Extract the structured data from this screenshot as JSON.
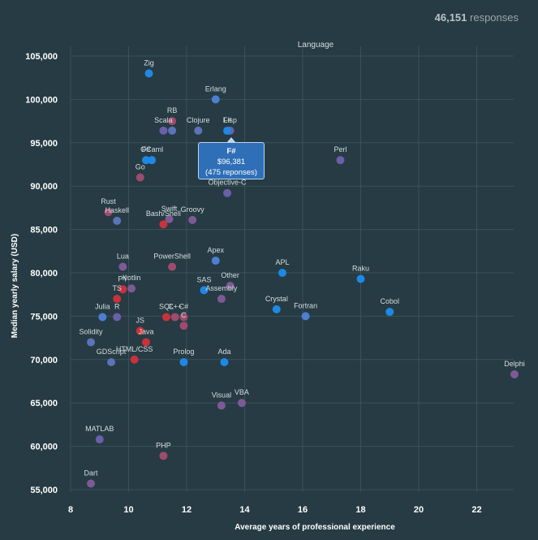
{
  "header": {
    "responses_count": "46,151",
    "responses_label": "responses"
  },
  "tooltip": {
    "language": "F#",
    "salary": "$96,381",
    "responses": "(475 reponses)"
  },
  "colors": {
    "background": "#263b43",
    "blue": "#1e88e5",
    "steel": "#5b73b8",
    "purple": "#7d5a96",
    "rose": "#9e4b6e",
    "red": "#c8323c"
  },
  "chart_data": {
    "type": "scatter",
    "title": "",
    "legend_title": "Language",
    "xlabel": "Average years of professional experience",
    "ylabel": "Median yearly salary (USD)",
    "xlim": [
      8,
      23.3
    ],
    "ylim": [
      55000,
      106000
    ],
    "x_ticks": [
      8,
      10,
      12,
      14,
      16,
      18,
      20,
      22
    ],
    "y_ticks": [
      55000,
      60000,
      65000,
      70000,
      75000,
      80000,
      85000,
      90000,
      95000,
      100000,
      105000
    ],
    "x_tick_labels": [
      "8",
      "10",
      "12",
      "14",
      "16",
      "18",
      "20",
      "22"
    ],
    "y_tick_labels": [
      "55,000",
      "60,000",
      "65,000",
      "70,000",
      "75,000",
      "80,000",
      "85,000",
      "90,000",
      "95,000",
      "100,000",
      "105,000"
    ],
    "grid": true,
    "points": [
      {
        "label": "Zig",
        "x": 10.7,
        "y": 103000,
        "color": "#1e88e5"
      },
      {
        "label": "Erlang",
        "x": 13.0,
        "y": 100000,
        "color": "#4c7fd0"
      },
      {
        "label": "RB",
        "x": 11.5,
        "y": 97500,
        "color": "#9e4b6e"
      },
      {
        "label": "Scala",
        "x": 11.2,
        "y": 96400,
        "color": "#6a5fa8"
      },
      {
        "label": "",
        "x": 11.5,
        "y": 96400,
        "color": "#5b73b8"
      },
      {
        "label": "Clojure",
        "x": 12.4,
        "y": 96400,
        "color": "#5b73b8"
      },
      {
        "label": "Lisp",
        "x": 13.5,
        "y": 96400,
        "color": "#6a5fa8"
      },
      {
        "label": "F#",
        "x": 13.4,
        "y": 96381,
        "color": "#1e88e5"
      },
      {
        "label": "F#",
        "x": 10.6,
        "y": 93000,
        "color": "#1e88e5"
      },
      {
        "label": "OCaml",
        "x": 10.8,
        "y": 93000,
        "color": "#1e88e5"
      },
      {
        "label": "Perl",
        "x": 17.3,
        "y": 93000,
        "color": "#6a5fa8"
      },
      {
        "label": "Go",
        "x": 10.4,
        "y": 91000,
        "color": "#9e4b6e"
      },
      {
        "label": "Objective-C",
        "x": 13.4,
        "y": 89200,
        "color": "#6a5fa8"
      },
      {
        "label": "Rust",
        "x": 9.3,
        "y": 87000,
        "color": "#9e4b6e"
      },
      {
        "label": "Haskell",
        "x": 9.6,
        "y": 86000,
        "color": "#5b73b8"
      },
      {
        "label": "Swift",
        "x": 11.4,
        "y": 86200,
        "color": "#7d5a96"
      },
      {
        "label": "Bash/Shell",
        "x": 11.2,
        "y": 85600,
        "color": "#c8323c"
      },
      {
        "label": "Groovy",
        "x": 12.2,
        "y": 86100,
        "color": "#7d5a96"
      },
      {
        "label": "Apex",
        "x": 13.0,
        "y": 81400,
        "color": "#4c7fd0"
      },
      {
        "label": "APL",
        "x": 15.3,
        "y": 80000,
        "color": "#1e88e5"
      },
      {
        "label": "Raku",
        "x": 18.0,
        "y": 79300,
        "color": "#1e88e5"
      },
      {
        "label": "Lua",
        "x": 9.8,
        "y": 80700,
        "color": "#7d5a96"
      },
      {
        "label": "PowerShell",
        "x": 11.5,
        "y": 80700,
        "color": "#9e4b6e"
      },
      {
        "label": "PY",
        "x": 9.8,
        "y": 78100,
        "color": "#c8323c"
      },
      {
        "label": "Kotlin",
        "x": 10.1,
        "y": 78200,
        "color": "#7d5a96"
      },
      {
        "label": "SAS",
        "x": 12.6,
        "y": 78000,
        "color": "#1e88e5"
      },
      {
        "label": "Other",
        "x": 13.5,
        "y": 78500,
        "color": "#7d5a96"
      },
      {
        "label": "Assembly",
        "x": 13.2,
        "y": 77000,
        "color": "#7d5a96"
      },
      {
        "label": "TS",
        "x": 9.6,
        "y": 77000,
        "color": "#c8323c"
      },
      {
        "label": "Crystal",
        "x": 15.1,
        "y": 75800,
        "color": "#1e88e5"
      },
      {
        "label": "Cobol",
        "x": 19.0,
        "y": 75500,
        "color": "#1e88e5"
      },
      {
        "label": "Julia",
        "x": 9.1,
        "y": 74900,
        "color": "#4c7fd0"
      },
      {
        "label": "R",
        "x": 9.6,
        "y": 74900,
        "color": "#6a5fa8"
      },
      {
        "label": "SQL",
        "x": 11.3,
        "y": 74900,
        "color": "#c8323c"
      },
      {
        "label": "C++",
        "x": 11.6,
        "y": 74900,
        "color": "#9e4b6e"
      },
      {
        "label": "C#",
        "x": 11.9,
        "y": 74900,
        "color": "#9e4b6e"
      },
      {
        "label": "C",
        "x": 11.9,
        "y": 73900,
        "color": "#9e4b6e"
      },
      {
        "label": "Fortran",
        "x": 16.1,
        "y": 75000,
        "color": "#4c7fd0"
      },
      {
        "label": "JS",
        "x": 10.4,
        "y": 73300,
        "color": "#c8323c"
      },
      {
        "label": "Solidity",
        "x": 8.7,
        "y": 72000,
        "color": "#5b73b8"
      },
      {
        "label": "Java",
        "x": 10.6,
        "y": 72000,
        "color": "#c8323c"
      },
      {
        "label": "GDScript",
        "x": 9.4,
        "y": 69700,
        "color": "#5b73b8"
      },
      {
        "label": "HTML/CSS",
        "x": 10.2,
        "y": 70000,
        "color": "#c8323c"
      },
      {
        "label": "Prolog",
        "x": 11.9,
        "y": 69700,
        "color": "#1e88e5"
      },
      {
        "label": "Ada",
        "x": 13.3,
        "y": 69700,
        "color": "#1e88e5"
      },
      {
        "label": "Delphi",
        "x": 23.3,
        "y": 68300,
        "color": "#7d5a96"
      },
      {
        "label": "Visual",
        "x": 13.2,
        "y": 64700,
        "color": "#7d5a96"
      },
      {
        "label": "VBA",
        "x": 13.9,
        "y": 65000,
        "color": "#7d5a96"
      },
      {
        "label": "MATLAB",
        "x": 9.0,
        "y": 60800,
        "color": "#6a5fa8"
      },
      {
        "label": "PHP",
        "x": 11.2,
        "y": 58900,
        "color": "#9e4b6e"
      },
      {
        "label": "Dart",
        "x": 8.7,
        "y": 55700,
        "color": "#7d5a96"
      }
    ]
  }
}
